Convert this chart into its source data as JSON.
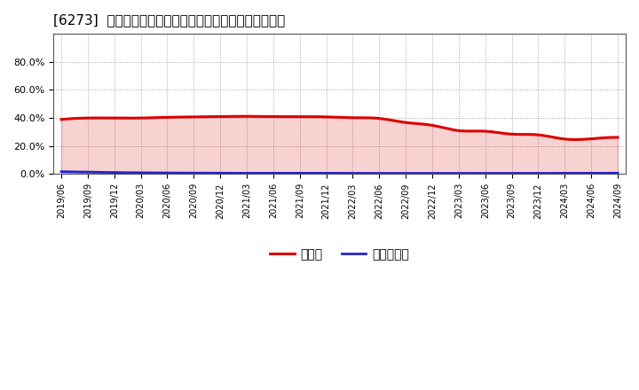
{
  "title": "[6273]  現預金、有利子負債の総資産に対する比率の推移",
  "bg_color": "#ffffff",
  "plot_bg_color": "#ffffff",
  "grid_color": "#999999",
  "ylim": [
    0,
    1.0
  ],
  "yticks": [
    0.0,
    0.2,
    0.4,
    0.6,
    0.8
  ],
  "legend_labels": [
    "現預金",
    "有利子負債"
  ],
  "line_colors": [
    "#dd0000",
    "#2222cc"
  ],
  "dates": [
    "2019/06",
    "2019/09",
    "2019/12",
    "2020/03",
    "2020/06",
    "2020/09",
    "2020/12",
    "2021/03",
    "2021/06",
    "2021/09",
    "2021/12",
    "2022/03",
    "2022/06",
    "2022/09",
    "2022/12",
    "2023/03",
    "2023/06",
    "2023/09",
    "2023/12",
    "2024/03",
    "2024/06",
    "2024/09"
  ],
  "cash_ratio": [
    0.39,
    0.4,
    0.4,
    0.4,
    0.405,
    0.408,
    0.41,
    0.412,
    0.41,
    0.41,
    0.408,
    0.402,
    0.397,
    0.368,
    0.348,
    0.31,
    0.306,
    0.285,
    0.28,
    0.25,
    0.252,
    0.262
  ],
  "debt_ratio": [
    0.018,
    0.015,
    0.012,
    0.01,
    0.009,
    0.008,
    0.007,
    0.007,
    0.007,
    0.007,
    0.007,
    0.006,
    0.006,
    0.006,
    0.006,
    0.006,
    0.006,
    0.006,
    0.006,
    0.006,
    0.007,
    0.007
  ]
}
